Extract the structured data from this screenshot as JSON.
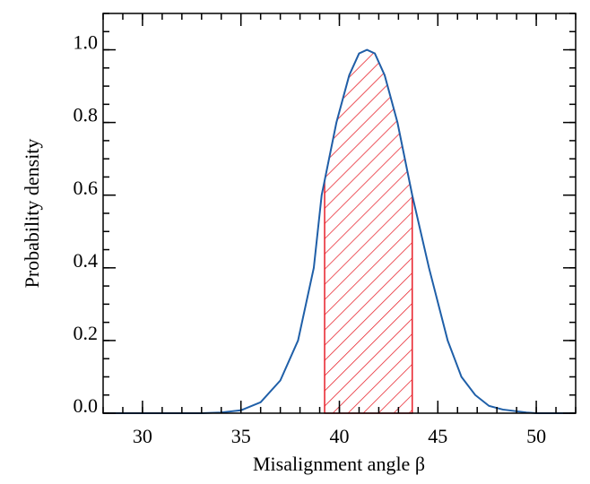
{
  "chart_data": {
    "type": "line",
    "xlabel": "Misalignment angle β",
    "ylabel": "Probability density",
    "x": [
      28,
      33,
      34,
      35,
      36,
      37,
      37.9,
      38.7,
      39.1,
      39.85,
      40.5,
      41,
      41.4,
      41.8,
      42.3,
      42.95,
      43.7,
      44.55,
      45.5,
      46.2,
      46.9,
      47.6,
      48.3,
      49.5,
      50,
      52
    ],
    "series": [
      {
        "color": "#1f5fa8",
        "values": [
          0,
          0,
          0.002,
          0.008,
          0.03,
          0.09,
          0.2,
          0.4,
          0.6,
          0.8,
          0.93,
          0.99,
          1.0,
          0.99,
          0.93,
          0.8,
          0.6,
          0.4,
          0.2,
          0.1,
          0.05,
          0.02,
          0.01,
          0.002,
          0,
          0
        ]
      }
    ],
    "shaded_range": [
      39.25,
      43.7
    ],
    "shade_color": "#e8202a",
    "xlim": [
      28,
      52
    ],
    "ylim": [
      0,
      1.1
    ],
    "xticks": [
      30,
      35,
      40,
      45,
      50
    ],
    "yticks": [
      {
        "value": 0,
        "label": "0.0"
      },
      0.2,
      0.4,
      0.6,
      0.8,
      {
        "value": 1,
        "label": "1.0"
      }
    ]
  }
}
